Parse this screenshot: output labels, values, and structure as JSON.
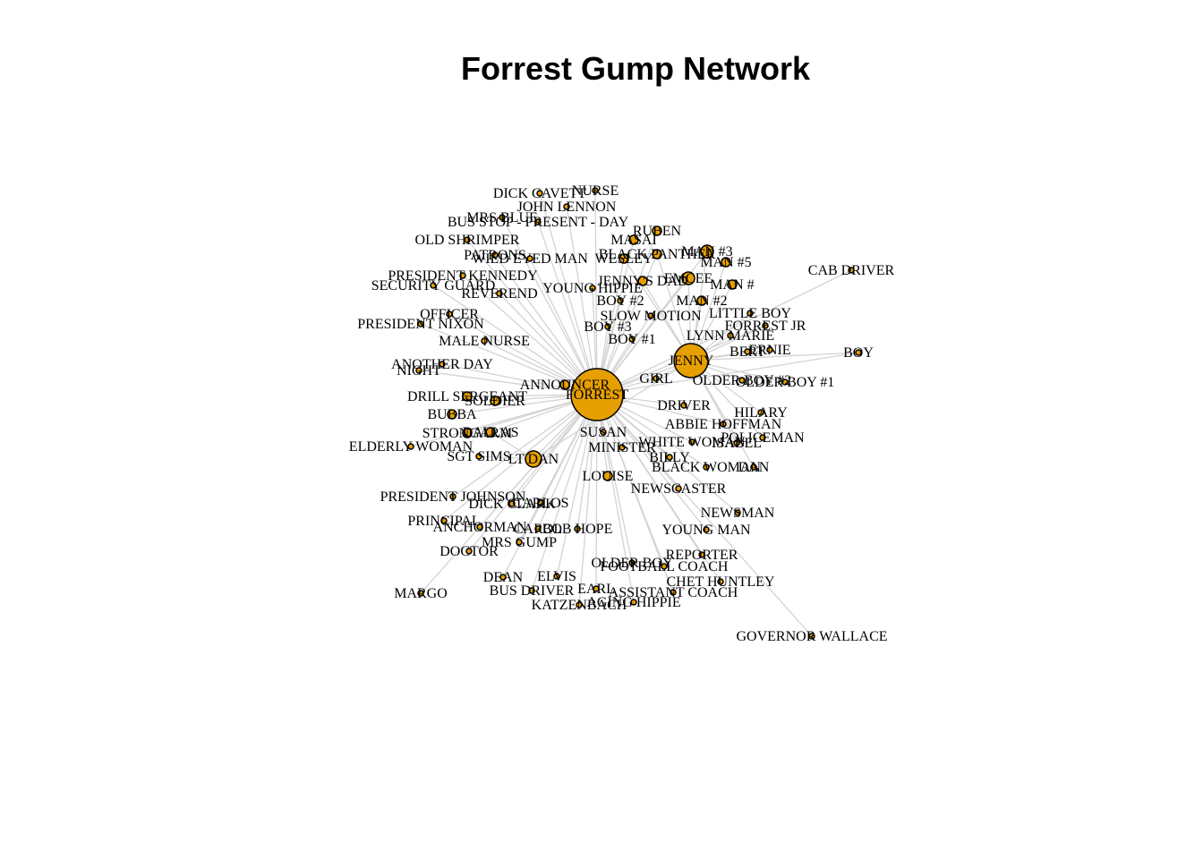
{
  "title": "Forrest Gump Network",
  "colors": {
    "node_fill": "#e69f00",
    "node_stroke": "#000000",
    "edge": "#d3d3d3"
  },
  "hubs": [
    "FORREST",
    "JENNY"
  ],
  "nodes": [
    {
      "id": "FORREST",
      "label": "FORREST",
      "weight": 100
    },
    {
      "id": "JENNY",
      "label": "JENNY",
      "weight": 45
    },
    {
      "id": "LT DAN",
      "label": "LT DAN",
      "weight": 15
    },
    {
      "id": "ANNOUNCER",
      "label": "ANNOUNCER",
      "weight": 3
    },
    {
      "id": "NURSE",
      "label": "NURSE",
      "weight": 1
    },
    {
      "id": "DICK CAVETT",
      "label": "DICK CAVETT",
      "weight": 1
    },
    {
      "id": "JOHN LENNON",
      "label": "JOHN LENNON",
      "weight": 1
    },
    {
      "id": "MRS BLUE",
      "label": "MRS BLUE",
      "weight": 1
    },
    {
      "id": "BUS STOP - PRESENT - DAY",
      "label": "BUS STOP - PRESENT - DAY",
      "weight": 1
    },
    {
      "id": "OLD SHRIMPER",
      "label": "OLD SHRIMPER",
      "weight": 1
    },
    {
      "id": "PATRONS",
      "label": "PATRONS",
      "weight": 1
    },
    {
      "id": "WILD EYED MAN",
      "label": "WILD EYED MAN",
      "weight": 1
    },
    {
      "id": "WESLEY",
      "label": "WESLEY",
      "weight": 3
    },
    {
      "id": "BLACK PANTHER",
      "label": "BLACK PANTHER",
      "weight": 3
    },
    {
      "id": "MASAI",
      "label": "MASAI",
      "weight": 3
    },
    {
      "id": "RUBEN",
      "label": "RUBEN",
      "weight": 3
    },
    {
      "id": "MAN #3",
      "label": "MAN #3",
      "weight": 6
    },
    {
      "id": "MAN #5",
      "label": "MAN #5",
      "weight": 4
    },
    {
      "id": "CAB DRIVER",
      "label": "CAB DRIVER",
      "weight": 1
    },
    {
      "id": "PRESIDENT KENNEDY",
      "label": "PRESIDENT KENNEDY",
      "weight": 1
    },
    {
      "id": "SECURITY GUARD",
      "label": "SECURITY GUARD",
      "weight": 1
    },
    {
      "id": "REVEREND",
      "label": "REVEREND",
      "weight": 1
    },
    {
      "id": "YOUNG HIPPIE",
      "label": "YOUNG HIPPIE",
      "weight": 1
    },
    {
      "id": "JENNY'S DAD",
      "label": "JENNY'S DAD",
      "weight": 3
    },
    {
      "id": "EMCEE",
      "label": "EMCEE",
      "weight": 6
    },
    {
      "id": "MAN #",
      "label": "MAN #",
      "weight": 3
    },
    {
      "id": "BOY #2",
      "label": "BOY #2",
      "weight": 1
    },
    {
      "id": "MAN #2",
      "label": "MAN #2",
      "weight": 3
    },
    {
      "id": "OFFICER",
      "label": "OFFICER",
      "weight": 1
    },
    {
      "id": "SLOW MOTION",
      "label": "SLOW MOTION",
      "weight": 1
    },
    {
      "id": "LITTLE BOY",
      "label": "LITTLE BOY",
      "weight": 1
    },
    {
      "id": "PRESIDENT NIXON",
      "label": "PRESIDENT NIXON",
      "weight": 1
    },
    {
      "id": "BOY #3",
      "label": "BOY #3",
      "weight": 1
    },
    {
      "id": "FORREST JR",
      "label": "FORREST JR",
      "weight": 1
    },
    {
      "id": "MALE NURSE",
      "label": "MALE NURSE",
      "weight": 1
    },
    {
      "id": "BOY #1",
      "label": "BOY #1",
      "weight": 1
    },
    {
      "id": "LYNN MARIE",
      "label": "LYNN MARIE",
      "weight": 1
    },
    {
      "id": "BERT",
      "label": "BERT",
      "weight": 1
    },
    {
      "id": "ERNIE",
      "label": "ERNIE",
      "weight": 1
    },
    {
      "id": "BOY",
      "label": "BOY",
      "weight": 1
    },
    {
      "id": "ANOTHER DAY",
      "label": "ANOTHER DAY",
      "weight": 1
    },
    {
      "id": "NIGHT",
      "label": "NIGHT",
      "weight": 1
    },
    {
      "id": "GIRL",
      "label": "GIRL",
      "weight": 1
    },
    {
      "id": "OLDER BOY #2",
      "label": "OLDER BOY #2",
      "weight": 1
    },
    {
      "id": "OLDER BOY #1",
      "label": "OLDER BOY #1",
      "weight": 1
    },
    {
      "id": "DRILL SERGEANT",
      "label": "DRILL SERGEANT",
      "weight": 3
    },
    {
      "id": "SOLDIER",
      "label": "SOLDIER",
      "weight": 3
    },
    {
      "id": "DRIVER",
      "label": "DRIVER",
      "weight": 1
    },
    {
      "id": "HILARY",
      "label": "HILARY",
      "weight": 1
    },
    {
      "id": "BUBBA",
      "label": "BUBBA",
      "weight": 3
    },
    {
      "id": "ABBIE HOFFMAN",
      "label": "ABBIE HOFFMAN",
      "weight": 1
    },
    {
      "id": "DALLAS",
      "label": "DALLAS",
      "weight": 3
    },
    {
      "id": "STRONGARM",
      "label": "STRONGARM",
      "weight": 3
    },
    {
      "id": "SUSAN",
      "label": "SUSAN",
      "weight": 1
    },
    {
      "id": "ELDERLY WOMAN",
      "label": "ELDERLY WOMAN",
      "weight": 1
    },
    {
      "id": "WHITE WOMAN",
      "label": "WHITE WOMAN",
      "weight": 1
    },
    {
      "id": "POLICEMAN",
      "label": "POLICEMAN",
      "weight": 1
    },
    {
      "id": "ISABEL",
      "label": "ISABEL",
      "weight": 1
    },
    {
      "id": "MINISTER",
      "label": "MINISTER",
      "weight": 1
    },
    {
      "id": "SGT SIMS",
      "label": "SGT SIMS",
      "weight": 1
    },
    {
      "id": "BILLY",
      "label": "BILLY",
      "weight": 1
    },
    {
      "id": "BLACK WOMAN",
      "label": "BLACK WOMAN",
      "weight": 1
    },
    {
      "id": "DAN",
      "label": "DAN",
      "weight": 1
    },
    {
      "id": "LOUISE",
      "label": "LOUISE",
      "weight": 3
    },
    {
      "id": "NEWSCASTER",
      "label": "NEWSCASTER",
      "weight": 1
    },
    {
      "id": "PRESIDENT JOHNSON",
      "label": "PRESIDENT JOHNSON",
      "weight": 1
    },
    {
      "id": "DICK CLARK",
      "label": "DICK CLARK",
      "weight": 1
    },
    {
      "id": "CARLOS",
      "label": "CARLOS",
      "weight": 1
    },
    {
      "id": "NEWSMAN",
      "label": "NEWSMAN",
      "weight": 1
    },
    {
      "id": "PRINCIPAL",
      "label": "PRINCIPAL",
      "weight": 1
    },
    {
      "id": "ANCHORMAN",
      "label": "ANCHORMAN",
      "weight": 1
    },
    {
      "id": "CAROL",
      "label": "CAROL",
      "weight": 1
    },
    {
      "id": "BOB HOPE",
      "label": "BOB HOPE",
      "weight": 1
    },
    {
      "id": "YOUNG MAN",
      "label": "YOUNG MAN",
      "weight": 1
    },
    {
      "id": "MRS GUMP",
      "label": "MRS GUMP",
      "weight": 1
    },
    {
      "id": "DOCTOR",
      "label": "DOCTOR",
      "weight": 1
    },
    {
      "id": "REPORTER",
      "label": "REPORTER",
      "weight": 1
    },
    {
      "id": "OLDER BOY",
      "label": "OLDER BOY",
      "weight": 1
    },
    {
      "id": "FOOTBALL COACH",
      "label": "FOOTBALL COACH",
      "weight": 1
    },
    {
      "id": "DEAN",
      "label": "DEAN",
      "weight": 1
    },
    {
      "id": "ELVIS",
      "label": "ELVIS",
      "weight": 1
    },
    {
      "id": "CHET HUNTLEY",
      "label": "CHET HUNTLEY",
      "weight": 1
    },
    {
      "id": "MARGO",
      "label": "MARGO",
      "weight": 1
    },
    {
      "id": "BUS DRIVER",
      "label": "BUS DRIVER",
      "weight": 1
    },
    {
      "id": "EARL",
      "label": "EARL",
      "weight": 1
    },
    {
      "id": "ASSISTANT COACH",
      "label": "ASSISTANT COACH",
      "weight": 1
    },
    {
      "id": "KATZENBACH",
      "label": "KATZENBACH",
      "weight": 1
    },
    {
      "id": "AGING HIPPIE",
      "label": "AGING HIPPIE",
      "weight": 1
    },
    {
      "id": "GOVERNOR WALLACE",
      "label": "GOVERNOR WALLACE",
      "weight": 1
    }
  ],
  "edges": [
    [
      "FORREST",
      "JENNY"
    ],
    [
      "FORREST",
      "LT DAN"
    ],
    [
      "JENNY",
      "LT DAN"
    ],
    [
      "FORREST",
      "ANNOUNCER"
    ],
    [
      "FORREST",
      "NURSE"
    ],
    [
      "FORREST",
      "DICK CAVETT"
    ],
    [
      "FORREST",
      "JOHN LENNON"
    ],
    [
      "FORREST",
      "MRS BLUE"
    ],
    [
      "FORREST",
      "BUS STOP - PRESENT - DAY"
    ],
    [
      "FORREST",
      "OLD SHRIMPER"
    ],
    [
      "FORREST",
      "PATRONS"
    ],
    [
      "FORREST",
      "WILD EYED MAN"
    ],
    [
      "FORREST",
      "WESLEY"
    ],
    [
      "JENNY",
      "WESLEY"
    ],
    [
      "FORREST",
      "BLACK PANTHER"
    ],
    [
      "JENNY",
      "BLACK PANTHER"
    ],
    [
      "FORREST",
      "MASAI"
    ],
    [
      "FORREST",
      "RUBEN"
    ],
    [
      "JENNY",
      "MAN #3"
    ],
    [
      "FORREST",
      "MAN #3"
    ],
    [
      "JENNY",
      "MAN #5"
    ],
    [
      "FORREST",
      "CAB DRIVER"
    ],
    [
      "FORREST",
      "PRESIDENT KENNEDY"
    ],
    [
      "FORREST",
      "SECURITY GUARD"
    ],
    [
      "FORREST",
      "REVEREND"
    ],
    [
      "FORREST",
      "YOUNG HIPPIE"
    ],
    [
      "JENNY",
      "JENNY'S DAD"
    ],
    [
      "FORREST",
      "EMCEE"
    ],
    [
      "JENNY",
      "EMCEE"
    ],
    [
      "JENNY",
      "MAN #"
    ],
    [
      "FORREST",
      "BOY #2"
    ],
    [
      "JENNY",
      "MAN #2"
    ],
    [
      "FORREST",
      "OFFICER"
    ],
    [
      "FORREST",
      "SLOW MOTION"
    ],
    [
      "JENNY",
      "LITTLE BOY"
    ],
    [
      "FORREST",
      "PRESIDENT NIXON"
    ],
    [
      "FORREST",
      "BOY #3"
    ],
    [
      "JENNY",
      "FORREST JR"
    ],
    [
      "FORREST",
      "FORREST JR"
    ],
    [
      "FORREST",
      "MALE NURSE"
    ],
    [
      "FORREST",
      "BOY #1"
    ],
    [
      "JENNY",
      "LYNN MARIE"
    ],
    [
      "JENNY",
      "BERT"
    ],
    [
      "JENNY",
      "ERNIE"
    ],
    [
      "JENNY",
      "BOY"
    ],
    [
      "FORREST",
      "BOY"
    ],
    [
      "FORREST",
      "ANOTHER DAY"
    ],
    [
      "FORREST",
      "NIGHT"
    ],
    [
      "FORREST",
      "GIRL"
    ],
    [
      "JENNY",
      "GIRL"
    ],
    [
      "JENNY",
      "OLDER BOY #2"
    ],
    [
      "JENNY",
      "OLDER BOY #1"
    ],
    [
      "FORREST",
      "DRILL SERGEANT"
    ],
    [
      "FORREST",
      "SOLDIER"
    ],
    [
      "FORREST",
      "DRIVER"
    ],
    [
      "JENNY",
      "HILARY"
    ],
    [
      "FORREST",
      "BUBBA"
    ],
    [
      "FORREST",
      "ABBIE HOFFMAN"
    ],
    [
      "FORREST",
      "DALLAS"
    ],
    [
      "LT DAN",
      "DALLAS"
    ],
    [
      "FORREST",
      "STRONGARM"
    ],
    [
      "FORREST",
      "SUSAN"
    ],
    [
      "FORREST",
      "ELDERLY WOMAN"
    ],
    [
      "FORREST",
      "WHITE WOMAN"
    ],
    [
      "JENNY",
      "POLICEMAN"
    ],
    [
      "JENNY",
      "ISABEL"
    ],
    [
      "FORREST",
      "MINISTER"
    ],
    [
      "LT DAN",
      "SGT SIMS"
    ],
    [
      "FORREST",
      "BILLY"
    ],
    [
      "FORREST",
      "BLACK WOMAN"
    ],
    [
      "JENNY",
      "DAN"
    ],
    [
      "FORREST",
      "LOUISE"
    ],
    [
      "FORREST",
      "NEWSCASTER"
    ],
    [
      "FORREST",
      "PRESIDENT JOHNSON"
    ],
    [
      "FORREST",
      "DICK CLARK"
    ],
    [
      "FORREST",
      "CARLOS"
    ],
    [
      "FORREST",
      "NEWSMAN"
    ],
    [
      "FORREST",
      "PRINCIPAL"
    ],
    [
      "FORREST",
      "ANCHORMAN"
    ],
    [
      "FORREST",
      "CAROL"
    ],
    [
      "FORREST",
      "BOB HOPE"
    ],
    [
      "FORREST",
      "YOUNG MAN"
    ],
    [
      "FORREST",
      "MRS GUMP"
    ],
    [
      "FORREST",
      "DOCTOR"
    ],
    [
      "FORREST",
      "REPORTER"
    ],
    [
      "FORREST",
      "OLDER BOY"
    ],
    [
      "FORREST",
      "FOOTBALL COACH"
    ],
    [
      "FORREST",
      "DEAN"
    ],
    [
      "FORREST",
      "ELVIS"
    ],
    [
      "FORREST",
      "CHET HUNTLEY"
    ],
    [
      "FORREST",
      "MARGO"
    ],
    [
      "FORREST",
      "BUS DRIVER"
    ],
    [
      "FORREST",
      "EARL"
    ],
    [
      "FORREST",
      "ASSISTANT COACH"
    ],
    [
      "FORREST",
      "KATZENBACH"
    ],
    [
      "FORREST",
      "AGING HIPPIE"
    ],
    [
      "FORREST",
      "GOVERNOR WALLACE"
    ]
  ]
}
